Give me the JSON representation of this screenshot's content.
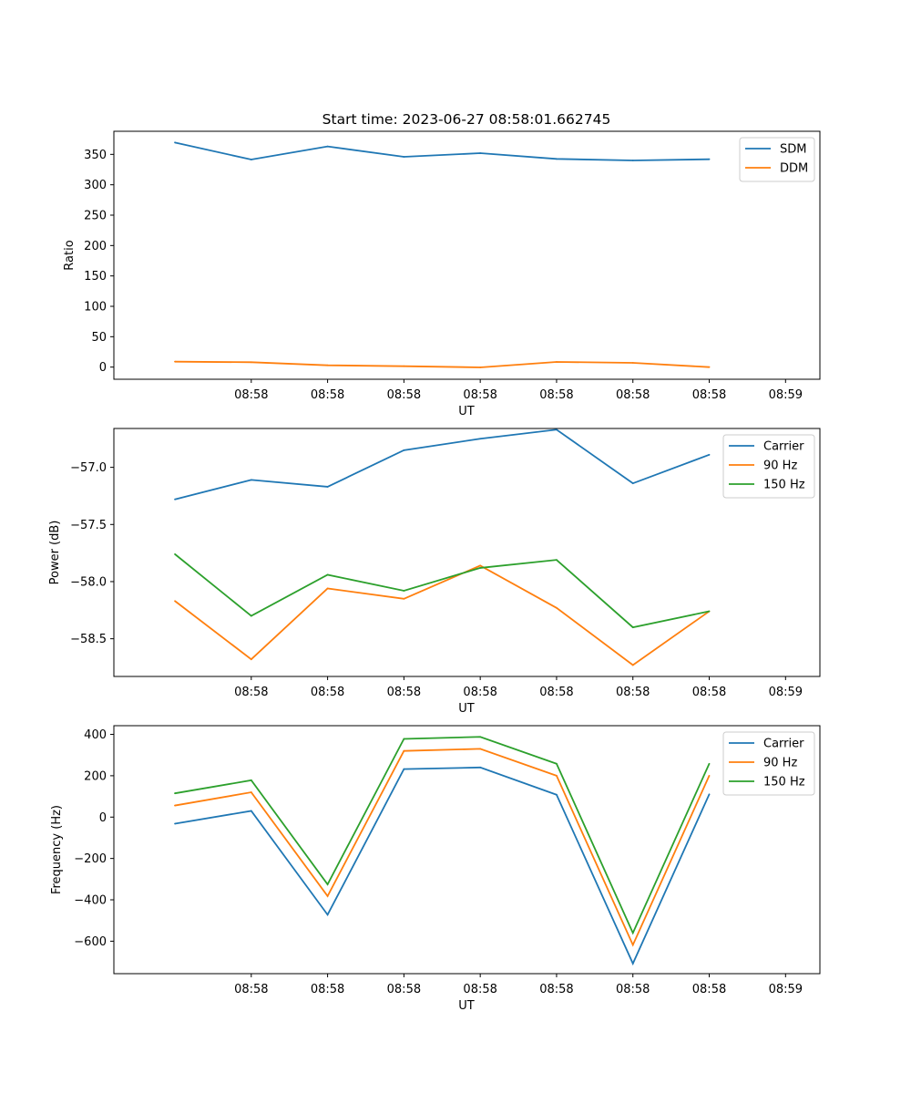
{
  "figure": {
    "title": "Start time: 2023-06-27 08:58:01.662745"
  },
  "chart_data": [
    {
      "type": "line",
      "title": "Start time: 2023-06-27 08:58:01.662745",
      "xlabel": "UT",
      "ylabel": "Ratio",
      "x_tick_labels": [
        "08:58",
        "08:58",
        "08:58",
        "08:58",
        "08:58",
        "08:58",
        "08:58",
        "08:59"
      ],
      "x_seconds": [
        2.1,
        3.1,
        4.1,
        5.1,
        6.1,
        7.1,
        8.1,
        9.1
      ],
      "xlim_seconds": [
        0.3,
        9.55
      ],
      "ylim": [
        -20,
        388
      ],
      "yticks": [
        0,
        50,
        100,
        150,
        200,
        250,
        300,
        350
      ],
      "legend_position": "top-right",
      "series": [
        {
          "name": "SDM",
          "color": "#1f77b4",
          "values": [
            369.5,
            341.5,
            363,
            346,
            352,
            342.5,
            340,
            342
          ]
        },
        {
          "name": "DDM",
          "color": "#ff7f0e",
          "values": [
            9,
            8,
            3,
            1.5,
            -0.5,
            8.5,
            7,
            0
          ]
        }
      ]
    },
    {
      "type": "line",
      "title": "",
      "xlabel": "UT",
      "ylabel": "Power (dB)",
      "x_tick_labels": [
        "08:58",
        "08:58",
        "08:58",
        "08:58",
        "08:58",
        "08:58",
        "08:58",
        "08:59"
      ],
      "x_seconds": [
        2.1,
        3.1,
        4.1,
        5.1,
        6.1,
        7.1,
        8.1,
        9.1
      ],
      "xlim_seconds": [
        0.3,
        9.55
      ],
      "ylim": [
        -58.83,
        -56.66
      ],
      "yticks": [
        -58.5,
        -58.0,
        -57.5,
        -57.0
      ],
      "ytick_labels": [
        "−58.5",
        "−58.0",
        "−57.5",
        "−57.0"
      ],
      "legend_position": "top-right",
      "series": [
        {
          "name": "Carrier",
          "color": "#1f77b4",
          "values": [
            -57.28,
            -57.11,
            -57.17,
            -56.85,
            -56.75,
            -56.67,
            -57.14,
            -56.89
          ]
        },
        {
          "name": "90 Hz",
          "color": "#ff7f0e",
          "values": [
            -58.17,
            -58.68,
            -58.06,
            -58.15,
            -57.86,
            -58.23,
            -58.73,
            -58.26
          ]
        },
        {
          "name": "150 Hz",
          "color": "#2ca02c",
          "values": [
            -57.76,
            -58.3,
            -57.94,
            -58.08,
            -57.88,
            -57.81,
            -58.4,
            -58.26
          ]
        }
      ]
    },
    {
      "type": "line",
      "title": "",
      "xlabel": "UT",
      "ylabel": "Frequency (Hz)",
      "x_tick_labels": [
        "08:58",
        "08:58",
        "08:58",
        "08:58",
        "08:58",
        "08:58",
        "08:58",
        "08:59"
      ],
      "x_seconds": [
        2.1,
        3.1,
        4.1,
        5.1,
        6.1,
        7.1,
        8.1,
        9.1
      ],
      "xlim_seconds": [
        0.3,
        9.55
      ],
      "ylim": [
        -757,
        442
      ],
      "yticks": [
        -600,
        -400,
        -200,
        0,
        200,
        400
      ],
      "ytick_labels": [
        "−600",
        "−400",
        "−200",
        "0",
        "200",
        "400"
      ],
      "legend_position": "top-right",
      "series": [
        {
          "name": "Carrier",
          "color": "#1f77b4",
          "values": [
            -32,
            30,
            -472,
            232,
            240,
            108,
            -708,
            110
          ]
        },
        {
          "name": "90 Hz",
          "color": "#ff7f0e",
          "values": [
            56,
            120,
            -382,
            320,
            330,
            200,
            -618,
            200
          ]
        },
        {
          "name": "150 Hz",
          "color": "#2ca02c",
          "values": [
            115,
            178,
            -325,
            378,
            388,
            258,
            -560,
            258
          ]
        }
      ]
    }
  ]
}
